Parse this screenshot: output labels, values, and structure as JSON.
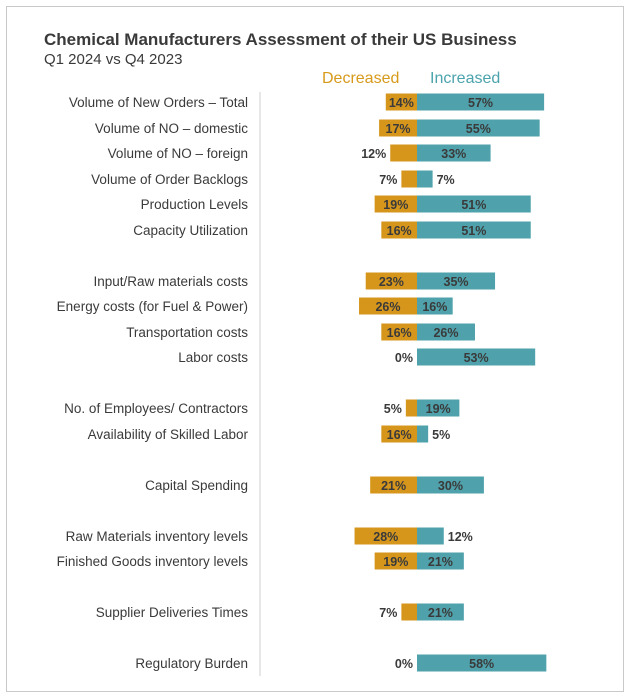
{
  "title": "Chemical Manufacturers Assessment of their US Business",
  "subtitle": "Q1 2024 vs Q4 2023",
  "legend": {
    "decreased": "Decreased",
    "increased": "Increased"
  },
  "colors": {
    "decreased": "#d6961c",
    "increased": "#4fa1ab",
    "text": "#3a3a3a"
  },
  "chart_data": {
    "type": "bar",
    "orientation": "horizontal-diverging",
    "title": "Chemical Manufacturers Assessment of their US Business",
    "subtitle": "Q1 2024 vs Q4 2023",
    "legend_position": "top",
    "categories": [
      "Volume of New Orders – Total",
      "Volume of NO – domestic",
      "Volume of NO – foreign",
      "Volume of Order Backlogs",
      "Production Levels",
      "Capacity Utilization",
      "Input/Raw materials costs",
      "Energy costs (for Fuel & Power)",
      "Transportation costs",
      "Labor costs",
      "No. of Employees/ Contractors",
      "Availability of Skilled Labor",
      "Capital Spending",
      "Raw Materials inventory levels",
      "Finished Goods inventory levels",
      "Supplier Deliveries Times",
      "Regulatory Burden"
    ],
    "series": [
      {
        "name": "Decreased",
        "values": [
          14,
          17,
          12,
          7,
          19,
          16,
          23,
          26,
          16,
          0,
          5,
          16,
          21,
          28,
          19,
          7,
          0
        ]
      },
      {
        "name": "Increased",
        "values": [
          57,
          55,
          33,
          7,
          51,
          51,
          35,
          16,
          26,
          53,
          19,
          5,
          30,
          12,
          21,
          21,
          58
        ]
      }
    ],
    "labels": {
      "decreased": [
        "14%",
        "17%",
        "12%",
        "7%",
        "19%",
        "16%",
        "23%",
        "26%",
        "16%",
        "0%",
        "5%",
        "16%",
        "21%",
        "28%",
        "19%",
        "7%",
        "0%"
      ],
      "increased": [
        "57%",
        "55%",
        "33%",
        "7%",
        "51%",
        "51%",
        "35%",
        "16%",
        "26%",
        "53%",
        "19%",
        "5%",
        "30%",
        "12%",
        "21%",
        "21%",
        "58%"
      ]
    }
  }
}
